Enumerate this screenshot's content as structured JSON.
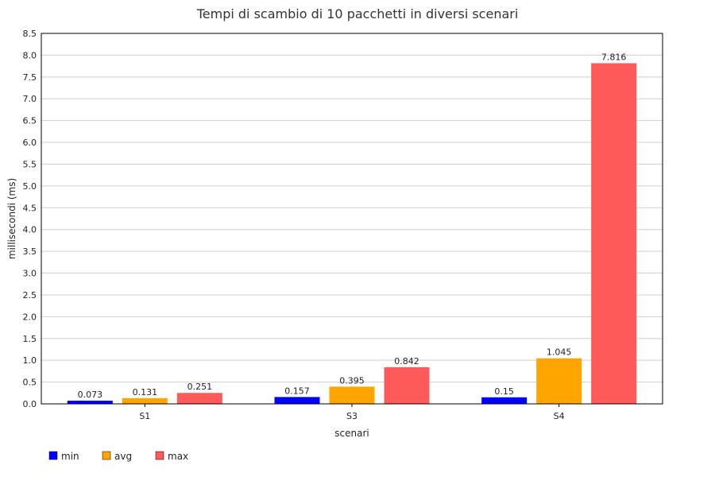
{
  "chart_data": {
    "type": "bar",
    "title": "Tempi di scambio di 10 pacchetti in diversi scenari",
    "xlabel": "scenari",
    "ylabel": "millisecondi (ms)",
    "categories": [
      "S1",
      "S3",
      "S4"
    ],
    "series": [
      {
        "name": "min",
        "color": "#0000ff",
        "values": [
          0.073,
          0.157,
          0.15
        ],
        "labels": [
          "0.073",
          "0.157",
          "0.15"
        ]
      },
      {
        "name": "avg",
        "color": "#ffa500",
        "values": [
          0.131,
          0.395,
          1.045
        ],
        "labels": [
          "0.131",
          "0.395",
          "1.045"
        ]
      },
      {
        "name": "max",
        "color": "#ff5a5a",
        "values": [
          0.251,
          0.842,
          7.816
        ],
        "labels": [
          "0.251",
          "0.842",
          "7.816"
        ]
      }
    ],
    "ylim": [
      0,
      8.5
    ],
    "yticks": [
      "0.0",
      "0.5",
      "1.0",
      "1.5",
      "2.0",
      "2.5",
      "3.0",
      "3.5",
      "4.0",
      "4.5",
      "5.0",
      "5.5",
      "6.0",
      "6.5",
      "7.0",
      "7.5",
      "8.0",
      "8.5"
    ],
    "grid": true,
    "legend_position": "bottom-left"
  }
}
